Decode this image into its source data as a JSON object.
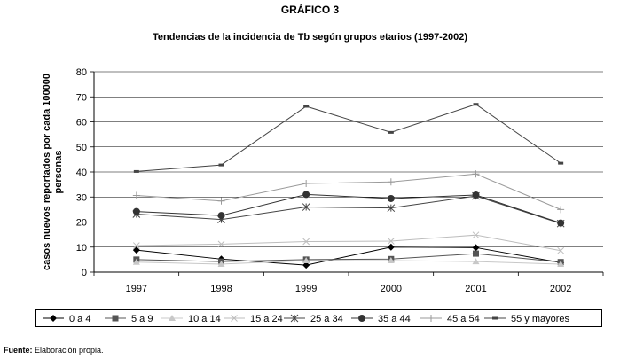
{
  "title": "GRÁFICO 3",
  "chart_data": {
    "type": "line",
    "title": "Tendencias de la incidencia de Tb según grupos etarios (1997-2002)",
    "xlabel": "",
    "ylabel": "casos nuevos reportados por cada 100000 personas",
    "categories": [
      "1997",
      "1998",
      "1999",
      "2000",
      "2001",
      "2002"
    ],
    "ylim": [
      0,
      80
    ],
    "yticks": [
      0,
      10,
      20,
      30,
      40,
      50,
      60,
      70,
      80
    ],
    "grid": "horizontal",
    "legend_position": "bottom",
    "series": [
      {
        "name": "0 a 4",
        "marker": "diamond",
        "color": "#000000",
        "values": [
          8.8,
          5.2,
          2.8,
          10.0,
          9.8,
          3.8
        ]
      },
      {
        "name": "5 a 9",
        "marker": "square",
        "color": "#555555",
        "values": [
          5.0,
          4.2,
          5.0,
          5.2,
          7.4,
          4.0
        ]
      },
      {
        "name": "10 a 14",
        "marker": "triangle",
        "color": "#c8c8c8",
        "values": [
          4.0,
          3.2,
          4.6,
          4.6,
          4.2,
          3.2
        ]
      },
      {
        "name": "15 a 24",
        "marker": "x",
        "color": "#bdbdbd",
        "values": [
          10.6,
          11.2,
          12.2,
          12.4,
          14.8,
          8.6
        ]
      },
      {
        "name": "25 a 34",
        "marker": "star",
        "color": "#444444",
        "values": [
          23.2,
          21.0,
          26.0,
          25.6,
          30.4,
          19.4
        ]
      },
      {
        "name": "35 a 44",
        "marker": "circle",
        "color": "#333333",
        "values": [
          24.2,
          22.6,
          31.0,
          29.4,
          30.8,
          19.6
        ]
      },
      {
        "name": "45 a 54",
        "marker": "plus",
        "color": "#9a9a9a",
        "values": [
          30.6,
          28.4,
          35.4,
          36.0,
          39.2,
          25.0
        ]
      },
      {
        "name": "55 y mayores",
        "marker": "dash",
        "color": "#444444",
        "values": [
          40.2,
          42.8,
          66.2,
          55.8,
          67.0,
          43.5
        ]
      }
    ]
  },
  "footer": {
    "source_label": "Fuente:",
    "source_text": " Elaboración propia."
  }
}
